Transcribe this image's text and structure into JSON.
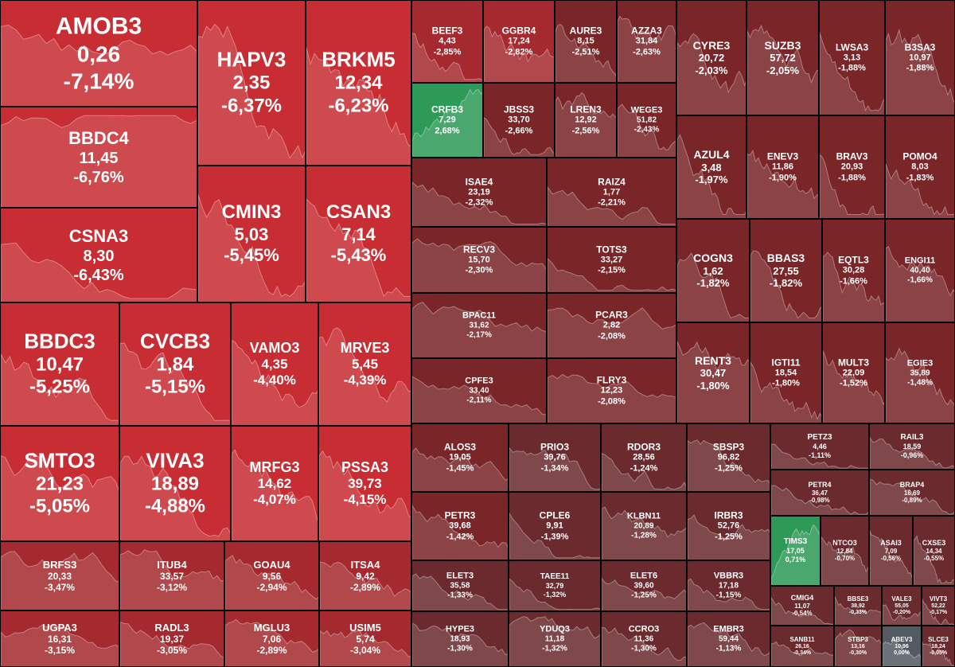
{
  "chart_data": {
    "type": "heatmap",
    "title": "",
    "colors": {
      "negative_strong": "#c72d33",
      "negative_mid": "#a42a2f",
      "negative_weak": "#7a2528",
      "negative_faint": "#6a2a2e",
      "positive": "#2d9a57",
      "neutral": "#545a63",
      "background": "#000000"
    },
    "stocks": [
      {
        "ticker": "AMOB3",
        "price": "0,26",
        "change": "-7,14%",
        "pct": -7.14
      },
      {
        "ticker": "HAPV3",
        "price": "2,35",
        "change": "-6,37%",
        "pct": -6.37
      },
      {
        "ticker": "BRKM5",
        "price": "12,34",
        "change": "-6,23%",
        "pct": -6.23
      },
      {
        "ticker": "BBDC4",
        "price": "11,45",
        "change": "-6,76%",
        "pct": -6.76
      },
      {
        "ticker": "CMIN3",
        "price": "5,03",
        "change": "-5,45%",
        "pct": -5.45
      },
      {
        "ticker": "CSAN3",
        "price": "7,14",
        "change": "-5,43%",
        "pct": -5.43
      },
      {
        "ticker": "CSNA3",
        "price": "8,30",
        "change": "-6,43%",
        "pct": -6.43
      },
      {
        "ticker": "BBDC3",
        "price": "10,47",
        "change": "-5,25%",
        "pct": -5.25
      },
      {
        "ticker": "CVCB3",
        "price": "1,84",
        "change": "-5,15%",
        "pct": -5.15
      },
      {
        "ticker": "VAMO3",
        "price": "4,35",
        "change": "-4,40%",
        "pct": -4.4
      },
      {
        "ticker": "MRVE3",
        "price": "5,45",
        "change": "-4,39%",
        "pct": -4.39
      },
      {
        "ticker": "SMTO3",
        "price": "21,23",
        "change": "-5,05%",
        "pct": -5.05
      },
      {
        "ticker": "VIVA3",
        "price": "18,89",
        "change": "-4,88%",
        "pct": -4.88
      },
      {
        "ticker": "MRFG3",
        "price": "14,62",
        "change": "-4,07%",
        "pct": -4.07
      },
      {
        "ticker": "PSSA3",
        "price": "39,73",
        "change": "-4,15%",
        "pct": -4.15
      },
      {
        "ticker": "BRFS3",
        "price": "20,33",
        "change": "-3,47%",
        "pct": -3.47
      },
      {
        "ticker": "ITUB4",
        "price": "33,57",
        "change": "-3,12%",
        "pct": -3.12
      },
      {
        "ticker": "GOAU4",
        "price": "9,56",
        "change": "-2,94%",
        "pct": -2.94
      },
      {
        "ticker": "ITSA4",
        "price": "9,42",
        "change": "-2,89%",
        "pct": -2.89
      },
      {
        "ticker": "UGPA3",
        "price": "16,31",
        "change": "-3,15%",
        "pct": -3.15
      },
      {
        "ticker": "RADL3",
        "price": "19,37",
        "change": "-3,05%",
        "pct": -3.05
      },
      {
        "ticker": "MGLU3",
        "price": "7,06",
        "change": "-2,89%",
        "pct": -2.89
      },
      {
        "ticker": "USIM5",
        "price": "5,74",
        "change": "-3,04%",
        "pct": -3.04
      },
      {
        "ticker": "BEEF3",
        "price": "4,43",
        "change": "-2,85%",
        "pct": -2.85
      },
      {
        "ticker": "GGBR4",
        "price": "17,24",
        "change": "-2,82%",
        "pct": -2.82
      },
      {
        "ticker": "AURE3",
        "price": "8,15",
        "change": "-2,51%",
        "pct": -2.51
      },
      {
        "ticker": "AZZA3",
        "price": "31,84",
        "change": "-2,63%",
        "pct": -2.63
      },
      {
        "ticker": "CRFB3",
        "price": "7,29",
        "change": "2,68%",
        "pct": 2.68
      },
      {
        "ticker": "JBSS3",
        "price": "33,70",
        "change": "-2,66%",
        "pct": -2.66
      },
      {
        "ticker": "LREN3",
        "price": "12,92",
        "change": "-2,56%",
        "pct": -2.56
      },
      {
        "ticker": "WEGE3",
        "price": "51,82",
        "change": "-2,43%",
        "pct": -2.43
      },
      {
        "ticker": "ISAE4",
        "price": "23,19",
        "change": "-2,32%",
        "pct": -2.32
      },
      {
        "ticker": "RAIZ4",
        "price": "1,77",
        "change": "-2,21%",
        "pct": -2.21
      },
      {
        "ticker": "RECV3",
        "price": "15,70",
        "change": "-2,30%",
        "pct": -2.3
      },
      {
        "ticker": "TOTS3",
        "price": "33,27",
        "change": "-2,15%",
        "pct": -2.15
      },
      {
        "ticker": "BPAC11",
        "price": "31,62",
        "change": "-2,17%",
        "pct": -2.17
      },
      {
        "ticker": "PCAR3",
        "price": "2,82",
        "change": "-2,08%",
        "pct": -2.08
      },
      {
        "ticker": "CPFE3",
        "price": "33,40",
        "change": "-2,11%",
        "pct": -2.11
      },
      {
        "ticker": "FLRY3",
        "price": "12,23",
        "change": "-2,08%",
        "pct": -2.08
      },
      {
        "ticker": "CYRE3",
        "price": "20,72",
        "change": "-2,03%",
        "pct": -2.03
      },
      {
        "ticker": "SUZB3",
        "price": "57,72",
        "change": "-2,05%",
        "pct": -2.05
      },
      {
        "ticker": "LWSA3",
        "price": "3,13",
        "change": "-1,88%",
        "pct": -1.88
      },
      {
        "ticker": "B3SA3",
        "price": "10,97",
        "change": "-1,88%",
        "pct": -1.88
      },
      {
        "ticker": "AZUL4",
        "price": "3,48",
        "change": "-1,97%",
        "pct": -1.97
      },
      {
        "ticker": "ENEV3",
        "price": "11,86",
        "change": "-1,90%",
        "pct": -1.9
      },
      {
        "ticker": "BRAV3",
        "price": "20,93",
        "change": "-1,88%",
        "pct": -1.88
      },
      {
        "ticker": "POMO4",
        "price": "8,03",
        "change": "-1,83%",
        "pct": -1.83
      },
      {
        "ticker": "COGN3",
        "price": "1,62",
        "change": "-1,82%",
        "pct": -1.82
      },
      {
        "ticker": "BBAS3",
        "price": "27,55",
        "change": "-1,82%",
        "pct": -1.82
      },
      {
        "ticker": "EQTL3",
        "price": "30,28",
        "change": "-1,66%",
        "pct": -1.66
      },
      {
        "ticker": "ENGI11",
        "price": "40,40",
        "change": "-1,66%",
        "pct": -1.66
      },
      {
        "ticker": "RENT3",
        "price": "30,47",
        "change": "-1,80%",
        "pct": -1.8
      },
      {
        "ticker": "IGTI11",
        "price": "18,54",
        "change": "-1,80%",
        "pct": -1.8
      },
      {
        "ticker": "MULT3",
        "price": "22,09",
        "change": "-1,52%",
        "pct": -1.52
      },
      {
        "ticker": "EGIE3",
        "price": "35,89",
        "change": "-1,48%",
        "pct": -1.48
      },
      {
        "ticker": "ALOS3",
        "price": "19,05",
        "change": "-1,45%",
        "pct": -1.45
      },
      {
        "ticker": "PRIO3",
        "price": "39,76",
        "change": "-1,34%",
        "pct": -1.34
      },
      {
        "ticker": "RDOR3",
        "price": "28,56",
        "change": "-1,24%",
        "pct": -1.24
      },
      {
        "ticker": "SBSP3",
        "price": "96,82",
        "change": "-1,25%",
        "pct": -1.25
      },
      {
        "ticker": "PETZ3",
        "price": "4,46",
        "change": "-1,11%",
        "pct": -1.11
      },
      {
        "ticker": "RAIL3",
        "price": "18,59",
        "change": "-0,96%",
        "pct": -0.96
      },
      {
        "ticker": "PETR3",
        "price": "39,68",
        "change": "-1,42%",
        "pct": -1.42
      },
      {
        "ticker": "CPLE6",
        "price": "9,91",
        "change": "-1,39%",
        "pct": -1.39
      },
      {
        "ticker": "KLBN11",
        "price": "20,89",
        "change": "-1,28%",
        "pct": -1.28
      },
      {
        "ticker": "IRBR3",
        "price": "52,76",
        "change": "-1,25%",
        "pct": -1.25
      },
      {
        "ticker": "PETR4",
        "price": "36,47",
        "change": "-0,98%",
        "pct": -0.98
      },
      {
        "ticker": "BRAP4",
        "price": "16,69",
        "change": "-0,89%",
        "pct": -0.89
      },
      {
        "ticker": "TIMS3",
        "price": "17,05",
        "change": "0,71%",
        "pct": 0.71
      },
      {
        "ticker": "NTCO3",
        "price": "12,84",
        "change": "-0,70%",
        "pct": -0.7
      },
      {
        "ticker": "ASAI3",
        "price": "7,09",
        "change": "-0,56%",
        "pct": -0.56
      },
      {
        "ticker": "CXSE3",
        "price": "14,34",
        "change": "-0,55%",
        "pct": -0.55
      },
      {
        "ticker": "ELET3",
        "price": "35,58",
        "change": "-1,33%",
        "pct": -1.33
      },
      {
        "ticker": "TAEE11",
        "price": "32,79",
        "change": "-1,32%",
        "pct": -1.32
      },
      {
        "ticker": "ELET6",
        "price": "39,60",
        "change": "-1,25%",
        "pct": -1.25
      },
      {
        "ticker": "VBBR3",
        "price": "17,18",
        "change": "-1,15%",
        "pct": -1.15
      },
      {
        "ticker": "CMIG4",
        "price": "11,07",
        "change": "-0,54%",
        "pct": -0.54
      },
      {
        "ticker": "BBSE3",
        "price": "38,92",
        "change": "-0,33%",
        "pct": -0.33
      },
      {
        "ticker": "VALE3",
        "price": "55,05",
        "change": "-0,20%",
        "pct": -0.2
      },
      {
        "ticker": "VIVT3",
        "price": "52,22",
        "change": "-0,17%",
        "pct": -0.17
      },
      {
        "ticker": "HYPE3",
        "price": "18,93",
        "change": "-1,30%",
        "pct": -1.3
      },
      {
        "ticker": "YDUQ3",
        "price": "11,18",
        "change": "-1,32%",
        "pct": -1.32
      },
      {
        "ticker": "CCRO3",
        "price": "11,36",
        "change": "-1,30%",
        "pct": -1.3
      },
      {
        "ticker": "EMBR3",
        "price": "59,44",
        "change": "-1,13%",
        "pct": -1.13
      },
      {
        "ticker": "SANB11",
        "price": "26,16",
        "change": "-0,34%",
        "pct": -0.34
      },
      {
        "ticker": "STBP3",
        "price": "13,16",
        "change": "-0,30%",
        "pct": -0.3
      },
      {
        "ticker": "ABEV3",
        "price": "10,96",
        "change": "0,00%",
        "pct": 0.0
      },
      {
        "ticker": "SLCE3",
        "price": "18,24",
        "change": "-0,05%",
        "pct": -0.05
      }
    ]
  }
}
